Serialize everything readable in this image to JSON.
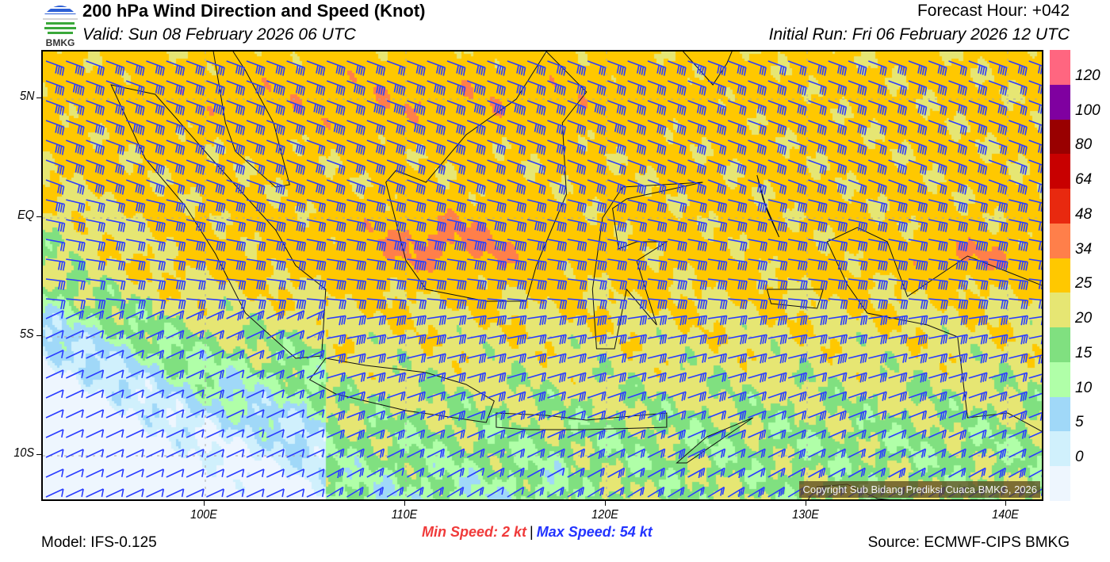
{
  "header": {
    "title": "200 hPa Wind Direction and Speed (Knot)",
    "valid": "Valid: Sun 08 February 2026 06 UTC",
    "forecast_hour": "Forecast Hour: +042",
    "initial_run": "Initial Run: Fri 06 February 2026 12 UTC",
    "logo_text": "BMKG"
  },
  "map": {
    "lat_ticks": [
      "5N",
      "EQ",
      "5S",
      "10S"
    ],
    "lon_ticks": [
      "100E",
      "110E",
      "120E",
      "130E",
      "140E"
    ],
    "copyright": "Copyright Sub Bidang Prediksi Cuaca BMKG, 2026",
    "barb_color": "#2a3cff"
  },
  "colorbar": {
    "labels": [
      "120",
      "100",
      "80",
      "64",
      "48",
      "34",
      "25",
      "20",
      "15",
      "10",
      "5",
      "0"
    ],
    "colors": [
      "#ff6680",
      "#7f00a0",
      "#990000",
      "#c80000",
      "#e8290f",
      "#ff7f4a",
      "#ffc800",
      "#e6e673",
      "#80e080",
      "#b0ffa8",
      "#a0d8f8",
      "#d0f0fc",
      "#eef6fe"
    ]
  },
  "footer": {
    "model": "Model: IFS-0.125",
    "min_speed": "Min Speed:   2 kt",
    "separator": "|",
    "max_speed": "Max Speed:  54 kt",
    "source": "Source: ECMWF-CIPS BMKG"
  }
}
